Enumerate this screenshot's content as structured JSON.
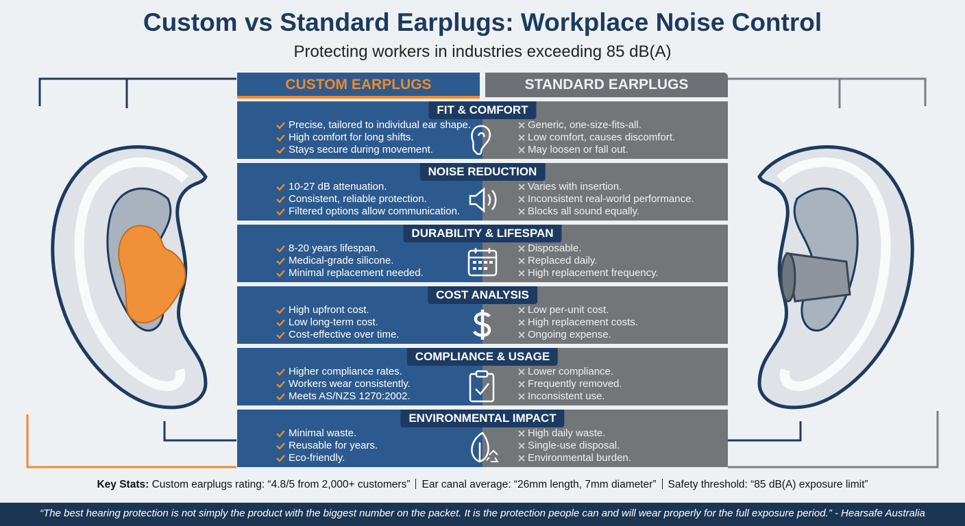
{
  "header": {
    "title": "Custom vs Standard Earplugs: Workplace Noise Control",
    "subtitle": "Protecting workers in industries exceeding 85 dB(A)"
  },
  "columns": {
    "custom": "CUSTOM EARPLUGS",
    "standard": "STANDARD EARPLUGS"
  },
  "sections": [
    {
      "title": "FIT & COMFORT",
      "custom": [
        "Precise, tailored to individual ear shape.",
        "High comfort for long shifts.",
        "Stays secure during movement."
      ],
      "standard": [
        "Generic, one-size-fits-all.",
        "Low comfort, causes discomfort.",
        "May loosen or fall out."
      ]
    },
    {
      "title": "NOISE REDUCTION",
      "custom": [
        "10-27 dB attenuation.",
        "Consistent, reliable protection.",
        "Filtered options allow communication."
      ],
      "standard": [
        "Varies with insertion.",
        "Inconsistent real-world performance.",
        "Blocks all sound equally."
      ]
    },
    {
      "title": "DURABILITY & LIFESPAN",
      "custom": [
        "8-20 years lifespan.",
        "Medical-grade silicone.",
        "Minimal replacement needed."
      ],
      "standard": [
        "Disposable.",
        "Replaced daily.",
        "High replacement frequency."
      ]
    },
    {
      "title": "COST ANALYSIS",
      "custom": [
        "High upfront cost.",
        "Low long-term cost.",
        "Cost-effective over time."
      ],
      "standard": [
        "Low per-unit cost.",
        "High replacement costs.",
        "Ongoing expense."
      ]
    },
    {
      "title": "COMPLIANCE & USAGE",
      "custom": [
        "Higher compliance rates.",
        "Workers wear consistently.",
        "Meets AS/NZS 1270:2002."
      ],
      "standard": [
        "Lower compliance.",
        "Frequently removed.",
        "Inconsistent use."
      ]
    },
    {
      "title": "ENVIRONMENTAL IMPACT",
      "custom": [
        "Minimal waste.",
        "Reusable for years.",
        "Eco-friendly."
      ],
      "standard": [
        "High daily waste.",
        "Single-use disposal.",
        "Environmental burden."
      ]
    }
  ],
  "key_stats": {
    "label": "Key Stats:",
    "items": [
      "Custom earplugs rating: “4.8/5 from 2,000+ customers”",
      "Ear canal average: “26mm length, 7mm diameter”",
      "Safety threshold: “85 dB(A) exposure limit”"
    ]
  },
  "quote": "“The best hearing protection is not simply the product with the biggest number on the packet. It is the protection people can and will wear properly for the full exposure period.” - Hearsafe Australia"
}
